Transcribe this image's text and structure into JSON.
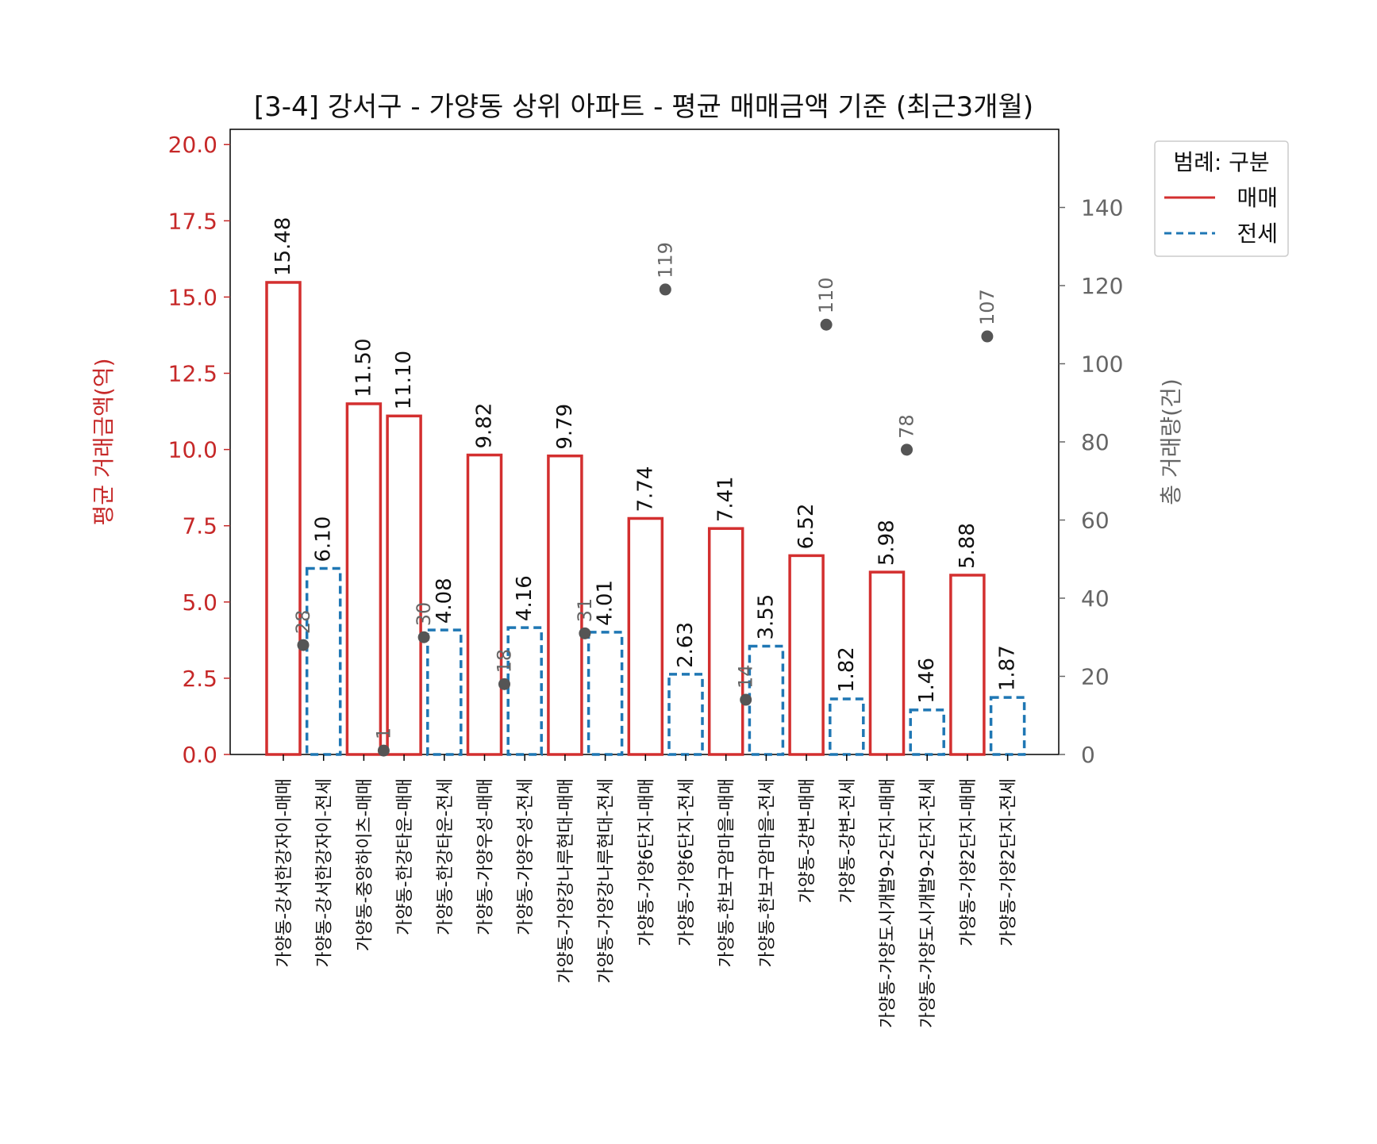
{
  "chart_data": {
    "type": "bar",
    "title": "[3-4] 강서구 - 가양동 상위 아파트 - 평균 매매금액 기준 (최근3개월)",
    "ylabel": "평균 거래금액(억)",
    "y2label": "총 거래량(건)",
    "ylim": [
      0,
      20.5
    ],
    "y2lim": [
      0,
      160
    ],
    "yticks": [
      "0.0",
      "2.5",
      "5.0",
      "7.5",
      "10.0",
      "12.5",
      "15.0",
      "17.5",
      "20.0"
    ],
    "y2ticks": [
      "0",
      "20",
      "40",
      "60",
      "80",
      "100",
      "120",
      "140"
    ],
    "categories": [
      "가양동-강서한강자이-매매",
      "가양동-강서한강자이-전세",
      "가양동-중앙하이츠-매매",
      "가양동-한강타운-매매",
      "가양동-한강타운-전세",
      "가양동-가양우성-매매",
      "가양동-가양우성-전세",
      "가양동-가양강나루현대-매매",
      "가양동-가양강나루현대-전세",
      "가양동-가양6단지-매매",
      "가양동-가양6단지-전세",
      "가양동-한보구암마을-매매",
      "가양동-한보구암마을-전세",
      "가양동-강변-매매",
      "가양동-강변-전세",
      "가양동-가양도시개발9-2단지-매매",
      "가양동-가양도시개발9-2단지-전세",
      "가양동-가양2단지-매매",
      "가양동-가양2단지-전세"
    ],
    "kinds": [
      "매매",
      "전세",
      "매매",
      "매매",
      "전세",
      "매매",
      "전세",
      "매매",
      "전세",
      "매매",
      "전세",
      "매매",
      "전세",
      "매매",
      "전세",
      "매매",
      "전세",
      "매매",
      "전세"
    ],
    "values": [
      15.48,
      6.1,
      11.5,
      11.1,
      4.08,
      9.82,
      4.16,
      9.79,
      4.01,
      7.74,
      2.63,
      7.41,
      3.55,
      6.52,
      1.82,
      5.98,
      1.46,
      5.88,
      1.87
    ],
    "value_labels": [
      "15.48",
      "6.10",
      "11.50",
      "11.10",
      "4.08",
      "9.82",
      "4.16",
      "9.79",
      "4.01",
      "7.74",
      "2.63",
      "7.41",
      "3.55",
      "6.52",
      "1.82",
      "5.98",
      "1.46",
      "5.88",
      "1.87"
    ],
    "counts": [
      28,
      null,
      1,
      30,
      null,
      18,
      null,
      31,
      null,
      119,
      null,
      14,
      null,
      110,
      null,
      78,
      null,
      107,
      null
    ],
    "count_labels": [
      "28",
      "",
      "1",
      "30",
      "",
      "18",
      "",
      "31",
      "",
      "119",
      "",
      "14",
      "",
      "110",
      "",
      "78",
      "",
      "107",
      ""
    ],
    "legend": {
      "title": "범례: 구분",
      "position": "upper right outside",
      "entries": [
        {
          "label": "매매",
          "color": "#d32f2f",
          "style": "solid"
        },
        {
          "label": "전세",
          "color": "#1f77b4",
          "style": "dashed"
        }
      ]
    },
    "colors": {
      "매매": "#d32f2f",
      "전세": "#1f77b4",
      "count_marker": "#555555",
      "left_axis": "#c62828",
      "right_axis": "#666666"
    },
    "grid": false
  }
}
